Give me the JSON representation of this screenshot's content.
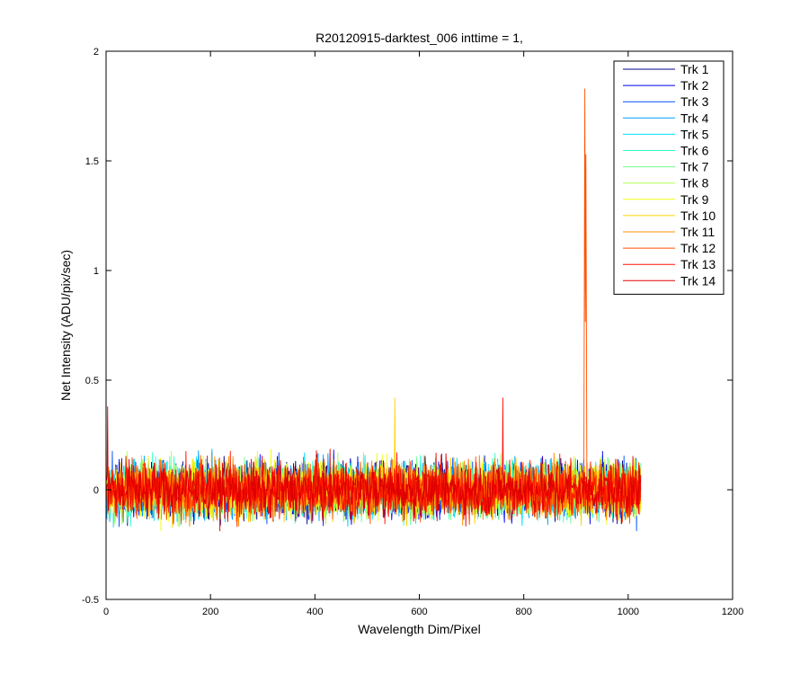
{
  "chart_data": {
    "type": "line",
    "title": "R20120915-darktest_006 inttime = 1,",
    "xlabel": "Wavelength Dim/Pixel",
    "ylabel": "Net Intensity (ADU/pix/sec)",
    "xlim": [
      0,
      1200
    ],
    "ylim": [
      -0.5,
      2
    ],
    "xticks": [
      0,
      200,
      400,
      600,
      800,
      1000,
      1200
    ],
    "yticks": [
      -0.5,
      0,
      0.5,
      1,
      1.5,
      2
    ],
    "xtick_labels": [
      "0",
      "200",
      "400",
      "600",
      "800",
      "1000",
      "1200"
    ],
    "ytick_labels": [
      "-0.5",
      "0",
      "0.5",
      "1",
      "1.5",
      "2"
    ],
    "x_range": [
      1,
      1024
    ],
    "noise_level": 0.09,
    "typical_band": [
      -0.3,
      0.33
    ],
    "legend_position": "top-right",
    "grid": false,
    "series": [
      {
        "name": "Trk 1",
        "color": "#00008f"
      },
      {
        "name": "Trk 2",
        "color": "#0000ef"
      },
      {
        "name": "Trk 3",
        "color": "#0050ff"
      },
      {
        "name": "Trk 4",
        "color": "#00a0ff"
      },
      {
        "name": "Trk 5",
        "color": "#00dfff"
      },
      {
        "name": "Trk 6",
        "color": "#30ffcf"
      },
      {
        "name": "Trk 7",
        "color": "#70ff8f"
      },
      {
        "name": "Trk 8",
        "color": "#afff50"
      },
      {
        "name": "Trk 9",
        "color": "#efff10"
      },
      {
        "name": "Trk 10",
        "color": "#ffd000"
      },
      {
        "name": "Trk 11",
        "color": "#ff9000"
      },
      {
        "name": "Trk 12",
        "color": "#ff5000"
      },
      {
        "name": "Trk 13",
        "color": "#ff1000"
      },
      {
        "name": "Trk 14",
        "color": "#df0000"
      }
    ],
    "annotations": [
      {
        "series": "Trk 12",
        "x": 917,
        "y": 1.83,
        "note": "spike"
      },
      {
        "series": "Trk 12",
        "x": 919,
        "y": 1.53,
        "note": "spike"
      },
      {
        "series": "Trk 13",
        "x": 760,
        "y": 0.42,
        "note": "spike"
      },
      {
        "series": "Trk 10",
        "x": 553,
        "y": 0.42,
        "note": "spike"
      },
      {
        "series": "Trk 14",
        "x": 3,
        "y": 0.38,
        "note": "spike"
      }
    ]
  }
}
